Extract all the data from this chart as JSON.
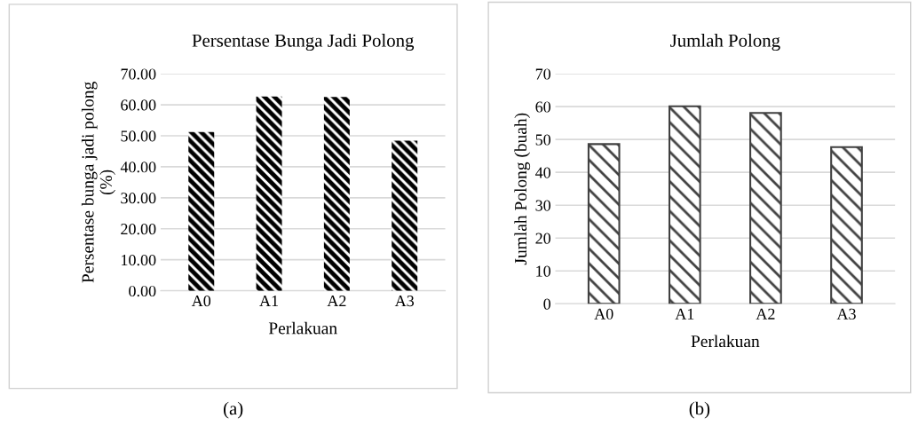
{
  "chart_data": [
    {
      "type": "bar",
      "title": "Persentase Bunga Jadi Polong",
      "xlabel": "Perlakuan",
      "ylabel": "Persentase bunga jadi polong\n(%)",
      "categories": [
        "A0",
        "A1",
        "A2",
        "A3"
      ],
      "series": [
        {
          "color": "#000000",
          "values": [
            51.2,
            62.7,
            62.5,
            48.4
          ]
        }
      ],
      "ylim": [
        0,
        70
      ],
      "yticks": [
        {
          "value": 0,
          "label": "0.00"
        },
        {
          "value": 10,
          "label": "10.00"
        },
        {
          "value": 20,
          "label": "20.00"
        },
        {
          "value": 30,
          "label": "30.00"
        },
        {
          "value": 40,
          "label": "40.00"
        },
        {
          "value": 50,
          "label": "50.00"
        },
        {
          "value": 60,
          "label": "60.00"
        },
        {
          "value": 70,
          "label": "70.00"
        }
      ],
      "grid": "y",
      "legend": false,
      "annotations": [
        "(a)"
      ]
    },
    {
      "type": "bar",
      "title": "Jumlah Polong",
      "xlabel": "Perlakuan",
      "ylabel": "Jumlah Polong (buah)",
      "categories": [
        "A0",
        "A1",
        "A2",
        "A3"
      ],
      "series": [
        {
          "color": "#404040",
          "values": [
            48.6,
            60.1,
            58.1,
            47.7
          ]
        }
      ],
      "ylim": [
        0,
        70
      ],
      "yticks": [
        0,
        10,
        20,
        30,
        40,
        50,
        60,
        70
      ],
      "grid": "y",
      "legend": false,
      "annotations": [
        "(b)"
      ]
    }
  ]
}
